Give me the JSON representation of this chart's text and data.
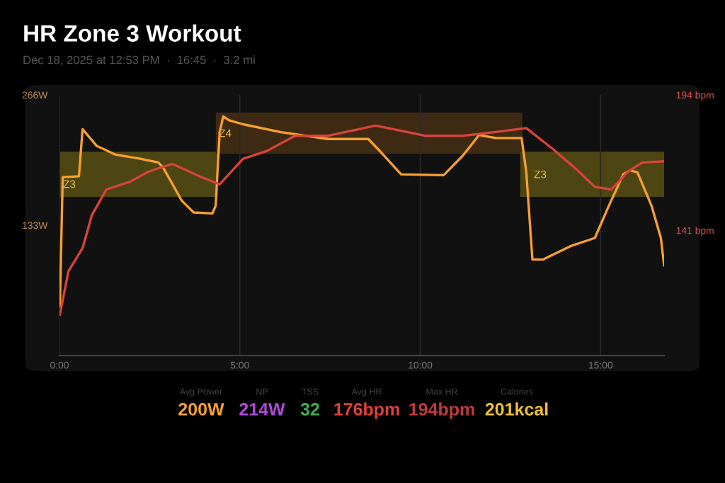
{
  "chart_data": {
    "type": "line",
    "title": "HR Zone 3 Workout",
    "subtitle": "Dec 18, 2025 at 12:53 PM  ·  16:45  ·  3.2 mi",
    "series": [
      {
        "type": "area",
        "color": "#4d4512",
        "x": [
          0,
          0,
          4.36,
          4.36
        ],
        "values": [
          163,
          207,
          207,
          163
        ]
      },
      {
        "type": "area",
        "color": "#3e2a12",
        "x": [
          4.36,
          4.36,
          12.8,
          12.8
        ],
        "values": [
          207,
          247,
          247,
          207
        ]
      },
      {
        "type": "area",
        "color": "#4d4512",
        "x": [
          12.8,
          12.8,
          16.76,
          16.76
        ],
        "values": [
          163,
          207,
          207,
          163
        ]
      },
      {
        "color": "#d8443a",
        "axis": "y2",
        "x": [
          0.01,
          0.25,
          0.64,
          0.9,
          1.3,
          1.95,
          2.47,
          3.13,
          3.91,
          4.44,
          5.09,
          5.74,
          6.53,
          7.45,
          8.76,
          9.47,
          10.13,
          11.18,
          12.09,
          12.94,
          13.66,
          14.32,
          14.84,
          15.3,
          15.76,
          16.15,
          16.74
        ],
        "values": [
          108,
          125,
          134,
          147,
          157,
          160,
          164,
          167,
          162,
          159,
          169,
          172,
          178,
          178,
          182,
          180,
          178,
          178,
          179.5,
          181,
          173,
          165,
          158,
          157,
          164,
          167.5,
          168
        ]
      },
      {
        "color": "#f7a030",
        "x": [
          0.01,
          0.09,
          0.54,
          0.64,
          1.03,
          1.56,
          2.21,
          2.74,
          2.87,
          3.39,
          3.72,
          4.24,
          4.33,
          4.44,
          4.54,
          4.7,
          5.09,
          6.14,
          7.45,
          8.56,
          8.95,
          9.47,
          10.65,
          11.18,
          11.63,
          12.09,
          12.81,
          12.94,
          13.11,
          13.4,
          14.19,
          14.84,
          15.23,
          15.63,
          15.82,
          16.02,
          16.41,
          16.67,
          16.76
        ],
        "values": [
          50,
          182,
          183,
          231,
          214,
          205,
          201,
          197,
          192,
          158,
          146,
          145,
          153,
          228,
          244,
          240,
          236,
          228,
          221,
          221,
          206,
          185,
          184,
          204,
          225,
          222,
          222,
          187,
          98,
          98,
          112,
          120,
          153,
          185,
          189,
          187,
          153,
          120,
          92
        ]
      }
    ],
    "xlim": [
      0,
      16.76
    ],
    "xticks": [
      {
        "value": 0,
        "label": "0:00"
      },
      {
        "value": 5,
        "label": "5:00"
      },
      {
        "value": 10,
        "label": "10:00"
      },
      {
        "value": 15,
        "label": "15:00"
      }
    ],
    "ylim": [
      0,
      266
    ],
    "yticks": [
      {
        "value": 266,
        "label": "266W"
      },
      {
        "value": 133,
        "label": "133W"
      }
    ],
    "y2lim": [
      92,
      194
    ],
    "y2ticks": [
      {
        "value": 194,
        "label": "194 bpm"
      },
      {
        "value": 141,
        "label": "141 bpm"
      }
    ],
    "grid": "x",
    "legend": false,
    "annotations": [
      {
        "text": "Z3",
        "x": 0.1,
        "y": 174
      },
      {
        "text": "Z4",
        "x": 4.42,
        "y": 226
      },
      {
        "text": "Z3",
        "x": 13.15,
        "y": 184
      },
      "Avg Power",
      "200W",
      "NP",
      "214W",
      "TSS",
      "32",
      "Avg HR",
      "176bpm",
      "Max HR",
      "194bpm",
      "Calories",
      "201kcal"
    ]
  }
}
